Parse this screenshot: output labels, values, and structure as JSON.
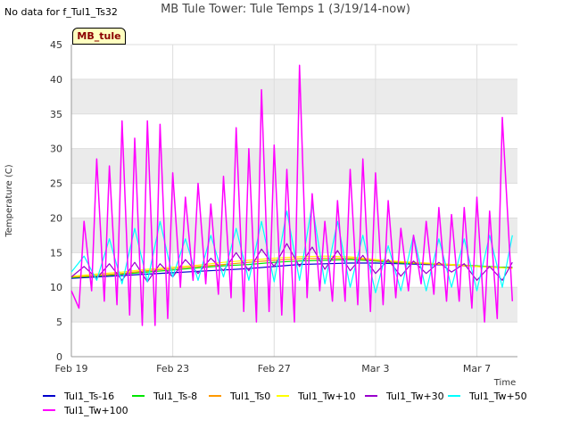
{
  "note": "No data for f_Tul1_Ts32",
  "title": "MB Tule Tower: Tule Temps 1 (3/19/14-now)",
  "station_label": "MB_tule",
  "colors": {
    "Tul1_Ts-16": "#0000cc",
    "Tul1_Ts-8": "#00e600",
    "Tul1_Ts0": "#ff9900",
    "Tul1_Tw+10": "#ffff00",
    "Tul1_Tw+30": "#9900cc",
    "Tul1_Tw+50": "#00ffff",
    "Tul1_Tw+100": "#ff00ff"
  },
  "chart_data": {
    "type": "line",
    "title": "MB Tule Tower: Tule Temps 1 (3/19/14-now)",
    "xlabel": "Time",
    "ylabel": "Temperature (C)",
    "x_unit": "days since Feb 19",
    "xlim": [
      0,
      17.6
    ],
    "ylim": [
      0,
      45
    ],
    "yticks": [
      0,
      5,
      10,
      15,
      20,
      25,
      30,
      35,
      40,
      45
    ],
    "xticks": [
      {
        "label": "Feb 19",
        "x": 0
      },
      {
        "label": "Feb 23",
        "x": 4
      },
      {
        "label": "Feb 27",
        "x": 8
      },
      {
        "label": "Mar 3",
        "x": 12
      },
      {
        "label": "Mar 7",
        "x": 16
      }
    ],
    "grid": true,
    "series": [
      {
        "name": "Tul1_Ts-16",
        "x": [
          0,
          1,
          2,
          3,
          4,
          5,
          6,
          7,
          8,
          9,
          10,
          11,
          12,
          13,
          14,
          15,
          16,
          17,
          17.4
        ],
        "values": [
          11.3,
          11.5,
          11.7,
          11.9,
          12.1,
          12.3,
          12.5,
          12.7,
          13.0,
          13.3,
          13.4,
          13.5,
          13.5,
          13.4,
          13.3,
          13.2,
          13.0,
          12.9,
          12.9
        ]
      },
      {
        "name": "Tul1_Ts-8",
        "x": [
          0,
          1,
          2,
          3,
          4,
          5,
          6,
          7,
          8,
          9,
          10,
          11,
          12,
          13,
          14,
          15,
          16,
          17,
          17.4
        ],
        "values": [
          11.4,
          11.6,
          11.9,
          12.2,
          12.5,
          12.8,
          13.1,
          13.3,
          13.6,
          13.8,
          13.9,
          14.0,
          13.8,
          13.5,
          13.4,
          13.3,
          13.1,
          12.9,
          12.8
        ]
      },
      {
        "name": "Tul1_Ts0",
        "x": [
          0,
          1,
          2,
          3,
          4,
          5,
          6,
          7,
          8,
          9,
          10,
          11,
          12,
          13,
          14,
          15,
          16,
          17,
          17.4
        ],
        "values": [
          11.5,
          11.7,
          12.0,
          12.4,
          12.7,
          13.0,
          13.3,
          13.6,
          13.9,
          14.1,
          14.2,
          14.2,
          13.9,
          13.6,
          13.4,
          13.2,
          13.0,
          12.8,
          12.8
        ]
      },
      {
        "name": "Tul1_Tw+10",
        "x": [
          0,
          1,
          2,
          3,
          4,
          5,
          6,
          7,
          8,
          9,
          10,
          11,
          12,
          13,
          14,
          15,
          16,
          17,
          17.4
        ],
        "values": [
          11.6,
          11.9,
          12.2,
          12.6,
          12.9,
          13.2,
          13.6,
          13.9,
          14.2,
          14.4,
          14.5,
          14.4,
          14.0,
          13.7,
          13.5,
          13.3,
          13.0,
          12.8,
          12.7
        ]
      },
      {
        "name": "Tul1_Tw+30",
        "x": [
          0,
          0.5,
          1,
          1.5,
          2,
          2.5,
          3,
          3.5,
          4,
          4.5,
          5,
          5.5,
          6,
          6.5,
          7,
          7.5,
          8,
          8.5,
          9,
          9.5,
          10,
          10.5,
          11,
          11.5,
          12,
          12.5,
          13,
          13.5,
          14,
          14.5,
          15,
          15.5,
          16,
          16.5,
          17,
          17.4
        ],
        "values": [
          11.5,
          13.0,
          11.3,
          13.4,
          11.0,
          13.6,
          10.8,
          13.4,
          11.5,
          14.0,
          12.0,
          14.2,
          12.4,
          15.0,
          12.4,
          15.5,
          13.0,
          16.3,
          13.0,
          15.8,
          12.6,
          15.3,
          12.4,
          14.6,
          12.0,
          14.0,
          11.6,
          13.8,
          12.0,
          13.6,
          12.2,
          13.4,
          11.0,
          13.0,
          11.0,
          13.6
        ]
      },
      {
        "name": "Tul1_Tw+50",
        "x": [
          0,
          0.5,
          1,
          1.5,
          2,
          2.5,
          3,
          3.5,
          4,
          4.5,
          5,
          5.5,
          6,
          6.5,
          7,
          7.5,
          8,
          8.5,
          9,
          9.5,
          10,
          10.5,
          11,
          11.5,
          12,
          12.5,
          13,
          13.5,
          14,
          14.5,
          15,
          15.5,
          16,
          16.5,
          17,
          17.4
        ],
        "values": [
          12.2,
          14.5,
          11.0,
          17.0,
          10.5,
          18.5,
          10.8,
          19.5,
          11.5,
          17.0,
          11.0,
          17.5,
          11.5,
          18.5,
          11.0,
          19.5,
          10.8,
          21.0,
          11.0,
          22.0,
          10.5,
          19.5,
          10.0,
          17.5,
          9.2,
          16.0,
          9.5,
          17.5,
          9.5,
          17.0,
          10.0,
          17.0,
          9.5,
          17.5,
          10.0,
          17.5
        ]
      },
      {
        "name": "Tul1_Tw+100",
        "x": [
          0,
          0.3,
          0.5,
          0.8,
          1,
          1.3,
          1.5,
          1.8,
          2,
          2.3,
          2.5,
          2.8,
          3,
          3.3,
          3.5,
          3.8,
          4,
          4.3,
          4.5,
          4.8,
          5,
          5.3,
          5.5,
          5.8,
          6,
          6.3,
          6.5,
          6.8,
          7,
          7.3,
          7.5,
          7.8,
          8,
          8.3,
          8.5,
          8.8,
          9,
          9.3,
          9.5,
          9.8,
          10,
          10.3,
          10.5,
          10.8,
          11,
          11.3,
          11.5,
          11.8,
          12,
          12.3,
          12.5,
          12.8,
          13,
          13.3,
          13.5,
          13.8,
          14,
          14.3,
          14.5,
          14.8,
          15,
          15.3,
          15.5,
          15.8,
          16,
          16.3,
          16.5,
          16.8,
          17,
          17.4
        ],
        "values": [
          9.5,
          7.0,
          19.5,
          9.5,
          28.5,
          8.0,
          27.5,
          7.5,
          34.0,
          6.0,
          31.5,
          4.5,
          34.0,
          4.5,
          33.5,
          5.5,
          26.5,
          10.0,
          23.0,
          11.0,
          25.0,
          10.5,
          22.0,
          9.0,
          26.0,
          8.5,
          33.0,
          6.5,
          30.0,
          5.0,
          38.5,
          6.5,
          30.5,
          6.0,
          27.0,
          5.0,
          42.0,
          8.5,
          23.5,
          9.5,
          19.5,
          8.0,
          22.5,
          8.0,
          27.0,
          7.5,
          28.5,
          6.5,
          26.5,
          7.5,
          22.5,
          8.5,
          18.5,
          9.5,
          17.5,
          10.5,
          19.5,
          9.0,
          21.5,
          8.0,
          20.5,
          8.0,
          21.5,
          7.0,
          23.0,
          5.0,
          21.0,
          5.5,
          34.5,
          8.0
        ]
      }
    ]
  },
  "legend": [
    "Tul1_Ts-16",
    "Tul1_Ts-8",
    "Tul1_Ts0",
    "Tul1_Tw+10",
    "Tul1_Tw+30",
    "Tul1_Tw+50",
    "Tul1_Tw+100"
  ]
}
